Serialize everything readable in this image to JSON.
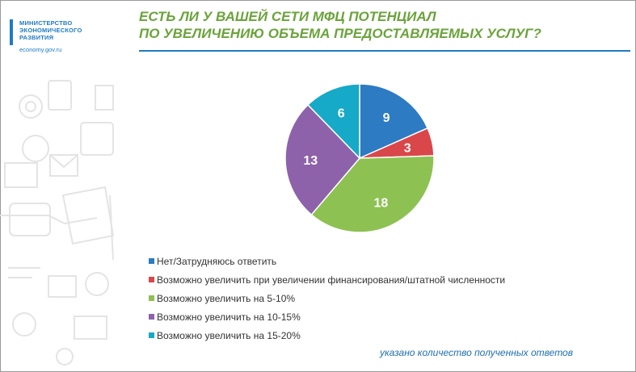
{
  "logo": {
    "name_lines": [
      "МИНИСТЕРСТВО",
      "ЭКОНОМИЧЕСКОГО",
      "РАЗВИТИЯ"
    ],
    "url": "economy.gov.ru",
    "color": "#1e7bc4"
  },
  "title_lines": [
    "ЕСТЬ ЛИ У ВАШЕЙ СЕТИ МФЦ ПОТЕНЦИАЛ",
    "ПО УВЕЛИЧЕНИЮ ОБЪЕМА ПРЕДОСТАВЛЯЕМЫХ УСЛУГ?"
  ],
  "title_color": "#6aa33a",
  "footnote": "указано количество полученных ответов",
  "chart_data": {
    "type": "pie",
    "title": "",
    "categories": [
      "Нет/Затрудняюсь ответить",
      "Возможно увеличить при увеличении финансирования/штатной численности",
      "Возможно увеличить на 5-10%",
      "Возможно увеличить на 10-15%",
      "Возможно увеличить на 15-20%"
    ],
    "values": [
      9,
      3,
      18,
      13,
      6
    ],
    "colors": [
      "#2c7bc3",
      "#d9474b",
      "#8dc152",
      "#8e62aa",
      "#17a9c8"
    ],
    "data_labels": [
      "9",
      "3",
      "18",
      "13",
      "6"
    ],
    "legend_position": "bottom-left"
  }
}
